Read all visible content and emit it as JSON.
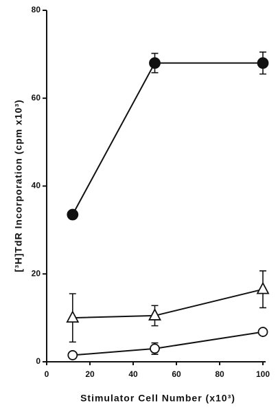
{
  "chart_data": {
    "type": "line",
    "x_label": "Stimulator Cell Number (x10³)",
    "y_label": "[³H]TdR Incorporation (cpm x10³)",
    "xlim": [
      0,
      100
    ],
    "xticks": [
      0,
      20,
      40,
      60,
      80,
      100
    ],
    "ylim": [
      0,
      80
    ],
    "yticks": [
      0,
      20,
      40,
      60,
      80
    ],
    "series": [
      {
        "marker": "circle-filled",
        "color": "#111111",
        "x": [
          12,
          50,
          100
        ],
        "values": [
          33.5,
          68,
          68
        ],
        "errors": [
          null,
          2.2,
          2.5
        ]
      },
      {
        "marker": "triangle-open",
        "color": "#111111",
        "x": [
          12,
          50,
          100
        ],
        "values": [
          10,
          10.5,
          16.5
        ],
        "errors": [
          5.5,
          2.3,
          4.2
        ]
      },
      {
        "marker": "circle-open",
        "color": "#111111",
        "x": [
          12,
          50,
          100
        ],
        "values": [
          1.5,
          3,
          6.8
        ],
        "errors": [
          null,
          1.3,
          null
        ]
      }
    ]
  }
}
